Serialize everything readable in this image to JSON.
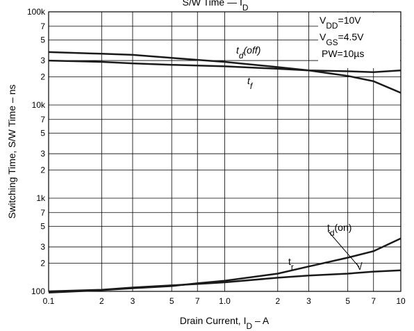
{
  "chart_data": {
    "type": "line",
    "title": [
      {
        "text": "S/W Time — I"
      },
      {
        "text": "D",
        "sub": true
      }
    ],
    "xlabel": [
      {
        "text": "Drain Current, I"
      },
      {
        "text": "D",
        "sub": true
      },
      {
        "text": " – A"
      }
    ],
    "ylabel": [
      {
        "text": "Switching Time, S/W Time – ns"
      }
    ],
    "log_x": true,
    "log_y": true,
    "grid": true,
    "xlim": [
      0.1,
      10
    ],
    "ylim": [
      100,
      100000
    ],
    "xticks": [
      0.1,
      {
        "value": 0.2,
        "label": "2"
      },
      {
        "value": 0.3,
        "label": "3"
      },
      {
        "value": 0.5,
        "label": "5"
      },
      {
        "value": 0.7,
        "label": "7"
      },
      {
        "value": 1,
        "label": "1.0"
      },
      2,
      3,
      5,
      7,
      10
    ],
    "yticks": [
      100,
      {
        "value": 200,
        "label": "2"
      },
      {
        "value": 300,
        "label": "3"
      },
      {
        "value": 500,
        "label": "5"
      },
      {
        "value": 700,
        "label": "7"
      },
      {
        "value": 1000,
        "label": "1k"
      },
      {
        "value": 2000,
        "label": "2"
      },
      {
        "value": 3000,
        "label": "3"
      },
      {
        "value": 5000,
        "label": "5"
      },
      {
        "value": 7000,
        "label": "7"
      },
      {
        "value": 10000,
        "label": "10k"
      },
      {
        "value": 20000,
        "label": "2"
      },
      {
        "value": 30000,
        "label": "3"
      },
      {
        "value": 50000,
        "label": "5"
      },
      {
        "value": 70000,
        "label": "7"
      },
      {
        "value": 100000,
        "label": "100k"
      }
    ],
    "x": [
      0.1,
      0.2,
      0.3,
      0.5,
      0.7,
      1,
      2,
      3,
      5,
      7,
      10
    ],
    "series": [
      {
        "color": "#1a1a1a",
        "values": [
          37000,
          35500,
          34500,
          32000,
          30500,
          29000,
          25500,
          23500,
          20500,
          18000,
          13500
        ]
      },
      {
        "color": "#1a1a1a",
        "values": [
          30000,
          29000,
          28000,
          27000,
          26500,
          26000,
          24500,
          23500,
          23000,
          22500,
          23500
        ]
      },
      {
        "color": "#1a1a1a",
        "values": [
          97,
          103,
          108,
          114,
          122,
          130,
          155,
          185,
          230,
          270,
          370
        ]
      },
      {
        "color": "#1a1a1a",
        "values": [
          100,
          104,
          110,
          116,
          120,
          125,
          140,
          148,
          155,
          163,
          168
        ]
      }
    ],
    "annotations": [
      [
        {
          "text": "t"
        },
        {
          "text": "d",
          "sub": true
        },
        {
          "text": "(off)"
        }
      ],
      [
        {
          "text": "t"
        },
        {
          "text": "f",
          "sub": true
        }
      ],
      [
        {
          "text": "t"
        },
        {
          "text": "d",
          "sub": true
        },
        {
          "text": "(on)"
        }
      ],
      [
        {
          "text": "t"
        },
        {
          "text": "r",
          "sub": true
        }
      ],
      [
        {
          "text": "V"
        },
        {
          "text": "DD",
          "sub": true
        },
        {
          "text": "=10V"
        }
      ],
      [
        {
          "text": "V"
        },
        {
          "text": "GS",
          "sub": true
        },
        {
          "text": "=4.5V"
        }
      ],
      [
        {
          "text": "PW=10µs"
        }
      ]
    ]
  }
}
